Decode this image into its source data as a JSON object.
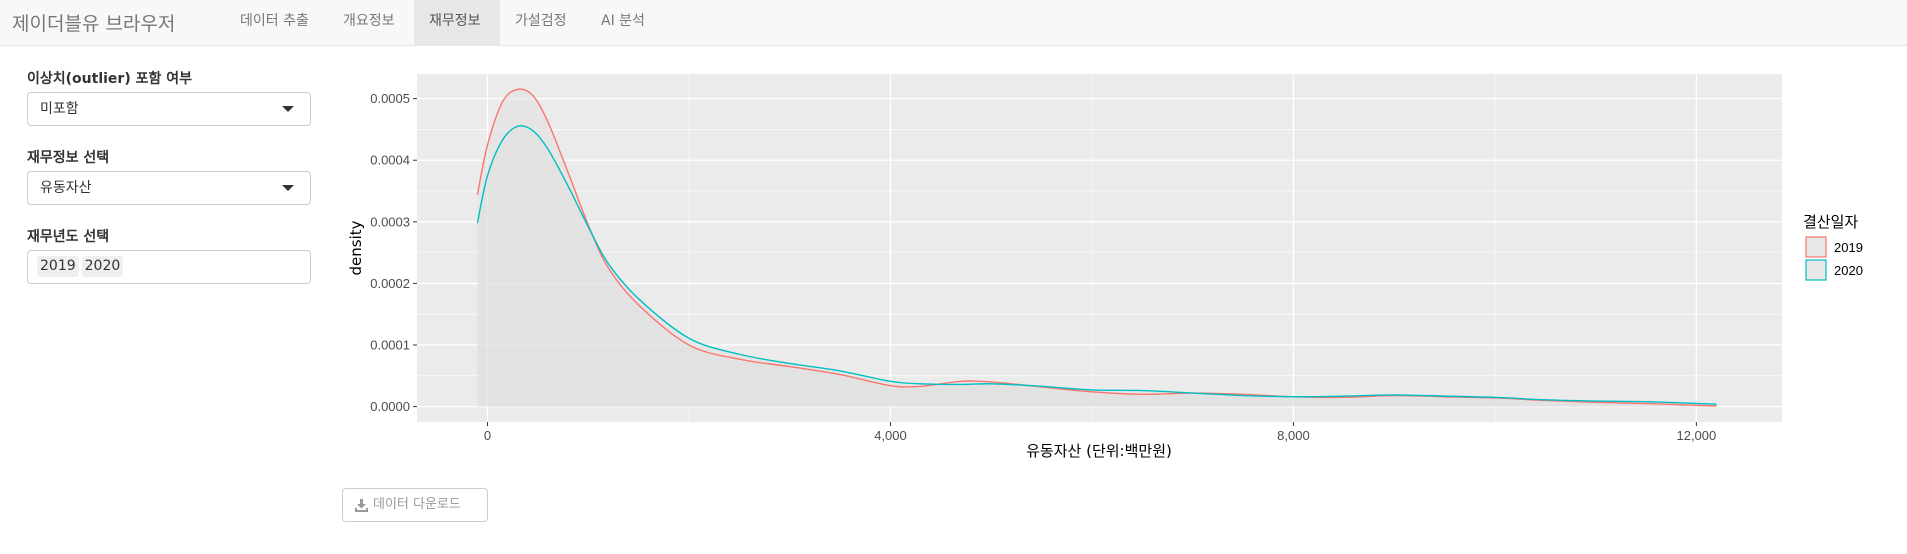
{
  "navbar": {
    "brand": "제이더블유 브라우저",
    "tabs": [
      {
        "label": "데이터 추출",
        "active": false
      },
      {
        "label": "개요정보",
        "active": false
      },
      {
        "label": "재무정보",
        "active": true
      },
      {
        "label": "가설검정",
        "active": false
      },
      {
        "label": "AI 분석",
        "active": false
      }
    ]
  },
  "sidebar": {
    "outlier": {
      "label": "이상치(outlier) 포함 여부",
      "value": "미포함"
    },
    "metric": {
      "label": "재무정보 선택",
      "value": "유동자산"
    },
    "year": {
      "label": "재무년도 선택",
      "tags": [
        "2019",
        "2020"
      ]
    }
  },
  "download_button": {
    "label": "데이터 다운로드",
    "icon": "download-icon"
  },
  "colors": {
    "series_2019": "#F8766D",
    "series_2020": "#00BFC4",
    "panel": "#EBEBEB",
    "fill": "#E0E0E0"
  },
  "chart_data": {
    "type": "line",
    "subtype": "density",
    "title": "",
    "xlabel": "유동자산 (단위:백만원)",
    "ylabel": "density",
    "xlim": [
      -700,
      12850
    ],
    "ylim": [
      -2.5e-05,
      0.00054
    ],
    "xticks": [
      0,
      4000,
      8000,
      12000
    ],
    "xtick_labels": [
      "0",
      "4,000",
      "8,000",
      "12,000"
    ],
    "yticks": [
      0,
      0.0001,
      0.0002,
      0.0003,
      0.0004,
      0.0005
    ],
    "ytick_labels": [
      "0.0000",
      "0.0001",
      "0.0002",
      "0.0003",
      "0.0004",
      "0.0005"
    ],
    "grid": true,
    "legend": {
      "title": "결산일자",
      "position": "right",
      "entries": [
        "2019",
        "2020"
      ]
    },
    "series": [
      {
        "name": "2019",
        "color": "#F8766D",
        "x": [
          -100,
          0,
          150,
          300,
          450,
          600,
          800,
          1000,
          1200,
          1500,
          2000,
          2500,
          3000,
          3500,
          4000,
          4300,
          4700,
          5000,
          5500,
          6000,
          6500,
          7000,
          7500,
          8000,
          8500,
          9000,
          9500,
          10000,
          10500,
          11000,
          11500,
          12200
        ],
        "y": [
          0.000344,
          0.000425,
          0.000495,
          0.000515,
          0.000505,
          0.000462,
          0.00038,
          0.000295,
          0.000225,
          0.000165,
          0.0001,
          7.7e-05,
          6.5e-05,
          5.2e-05,
          3.4e-05,
          3.3e-05,
          4.1e-05,
          4e-05,
          3.2e-05,
          2.4e-05,
          2e-05,
          2.2e-05,
          2e-05,
          1.6e-05,
          1.5e-05,
          1.8e-05,
          1.6e-05,
          1.4e-05,
          1e-05,
          7e-06,
          5e-06,
          1e-06
        ]
      },
      {
        "name": "2020",
        "color": "#00BFC4",
        "x": [
          -100,
          0,
          150,
          300,
          450,
          600,
          800,
          1000,
          1200,
          1500,
          2000,
          2500,
          3000,
          3500,
          4000,
          4300,
          4700,
          5000,
          5500,
          6000,
          6500,
          7000,
          7500,
          8000,
          8500,
          9000,
          9500,
          10000,
          10500,
          11000,
          11500,
          12200
        ],
        "y": [
          0.000298,
          0.000375,
          0.000433,
          0.000455,
          0.000448,
          0.000418,
          0.000358,
          0.000292,
          0.000232,
          0.000175,
          0.000111,
          8.5e-05,
          7e-05,
          5.8e-05,
          4.1e-05,
          3.7e-05,
          3.6e-05,
          3.7e-05,
          3.3e-05,
          2.7e-05,
          2.6e-05,
          2.2e-05,
          1.8e-05,
          1.6e-05,
          1.7e-05,
          1.9e-05,
          1.7e-05,
          1.5e-05,
          1.1e-05,
          9e-06,
          8e-06,
          4e-06
        ]
      }
    ]
  }
}
